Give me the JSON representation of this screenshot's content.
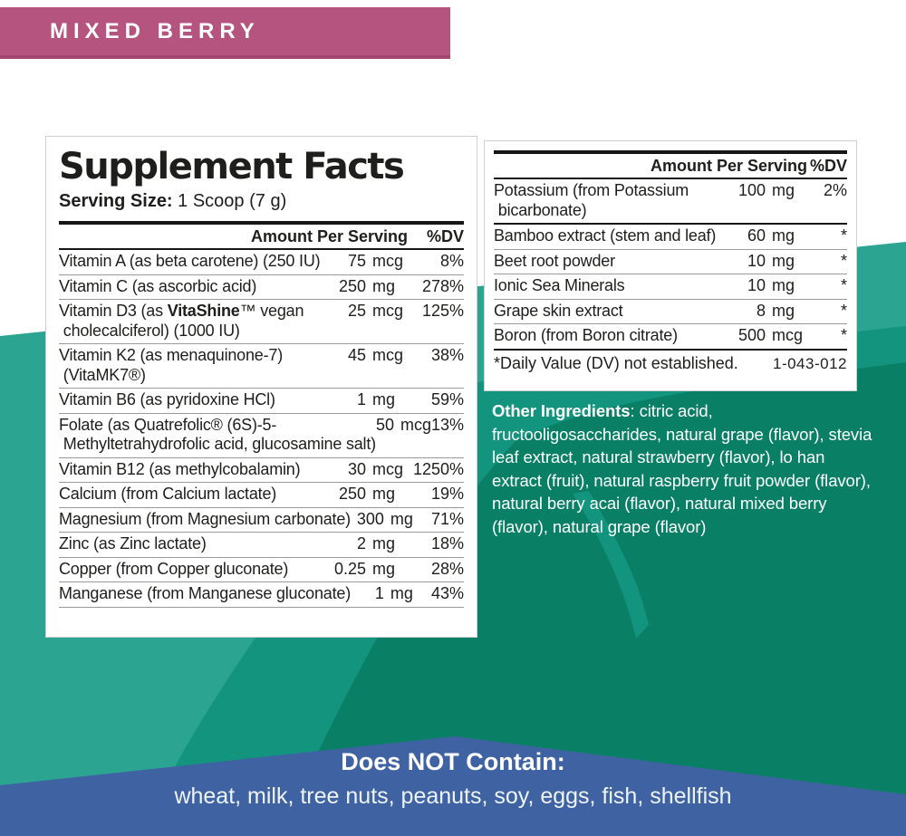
{
  "flavor_banner": {
    "label": "MIXED BERRY",
    "bg_color": "#b4547f"
  },
  "colors": {
    "magenta": "#b4547f",
    "teal_light": "#2ba492",
    "teal_mid": "#12947e",
    "teal_dark": "#098066",
    "banner_blue": "#3f63a2"
  },
  "left_panel": {
    "title": "Supplement Facts",
    "serving_label": "Serving Size:",
    "serving_value": " 1 Scoop (7 g)",
    "header": {
      "amount": "Amount Per Serving",
      "dv": "%DV"
    },
    "rows": [
      {
        "name": "Vitamin A (as beta carotene) (250 IU)",
        "amount_num": "75",
        "amount_unit": "mcg",
        "dv": "8%"
      },
      {
        "name": "Vitamin C (as ascorbic acid)",
        "amount_num": "250",
        "amount_unit": "mg",
        "dv": "278%"
      },
      {
        "name_parts": [
          {
            "t": "Vitamin D3 (as "
          },
          {
            "t": "VitaShine",
            "b": true
          },
          {
            "t": "™ vegan\n cholecalciferol) (1000 IU)"
          }
        ],
        "amount_num": "25",
        "amount_unit": "mcg",
        "dv": "125%"
      },
      {
        "name": "Vitamin K2 (as menaquinone-7)\n (VitaMK7®)",
        "amount_num": "45",
        "amount_unit": "mcg",
        "dv": "38%"
      },
      {
        "name": "Vitamin B6 (as pyridoxine HCl)",
        "amount_num": "1",
        "amount_unit": "mg",
        "dv": "59%"
      },
      {
        "name": "Folate (as Quatrefolic® (6S)-5-\n Methyltetrahydrofolic acid, glucosamine salt)",
        "amount_num": "50",
        "amount_unit": "mcg",
        "dv": "13%"
      },
      {
        "name": "Vitamin B12 (as methylcobalamin)",
        "amount_num": "30",
        "amount_unit": "mcg",
        "dv": "1250%"
      },
      {
        "name": "Calcium (from Calcium lactate)",
        "amount_num": "250",
        "amount_unit": "mg",
        "dv": "19%"
      },
      {
        "name": "Magnesium (from Magnesium carbonate)",
        "amount_num": "300",
        "amount_unit": "mg",
        "dv": "71%"
      },
      {
        "name": "Zinc (as Zinc lactate)",
        "amount_num": "2",
        "amount_unit": "mg",
        "dv": "18%"
      },
      {
        "name": "Copper (from Copper gluconate)",
        "amount_num": "0.25",
        "amount_unit": "mg",
        "dv": "28%"
      },
      {
        "name": "Manganese (from Manganese gluconate)",
        "amount_num": "1",
        "amount_unit": "mg",
        "dv": "43%"
      }
    ]
  },
  "right_panel": {
    "header": {
      "amount": "Amount Per Serving",
      "dv": "%DV"
    },
    "rows": [
      {
        "name": "Potassium (from Potassium\n bicarbonate)",
        "amount_num": "100",
        "amount_unit": "mg",
        "dv": "2%",
        "sep": "thick"
      },
      {
        "name": "Bamboo extract (stem and leaf)",
        "amount_num": "60",
        "amount_unit": "mg",
        "dv": "*"
      },
      {
        "name": "Beet root powder",
        "amount_num": "10",
        "amount_unit": "mg",
        "dv": "*"
      },
      {
        "name": "Ionic Sea Minerals",
        "amount_num": "10",
        "amount_unit": "mg",
        "dv": "*"
      },
      {
        "name": "Grape skin extract",
        "amount_num": "8",
        "amount_unit": "mg",
        "dv": "*"
      },
      {
        "name": "Boron (from Boron citrate)",
        "amount_num": "500",
        "amount_unit": "mcg",
        "dv": "*",
        "sep": "thick"
      }
    ],
    "footnote": "*Daily Value (DV) not established.",
    "code": "1-043-012"
  },
  "other_ingredients": {
    "label": "Other Ingredients",
    "text": ": citric acid, fructooligosaccharides, natural grape (flavor), stevia leaf extract, natural strawberry (flavor), lo han extract (fruit), natural raspberry fruit powder (flavor), natural berry acai (flavor), natural mixed berry (flavor), natural grape (flavor)"
  },
  "bottom_banner": {
    "title": "Does NOT Contain:",
    "items": "wheat, milk, tree nuts, peanuts, soy, eggs, fish, shellfish"
  }
}
